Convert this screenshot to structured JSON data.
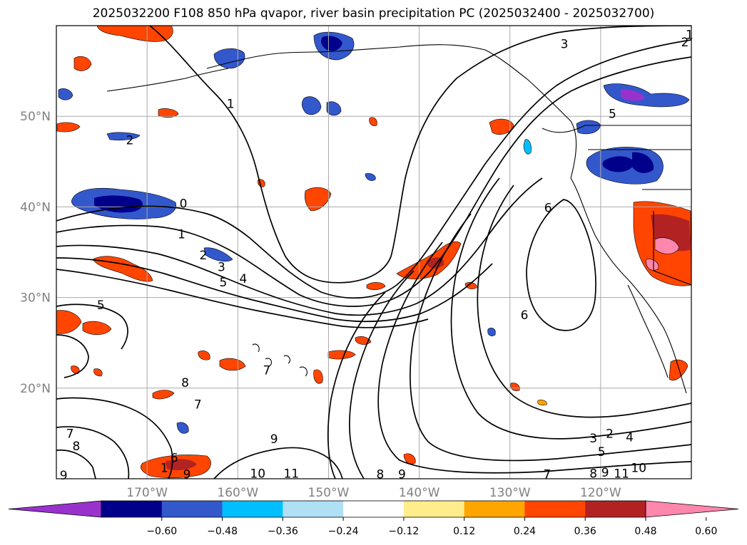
{
  "title": "2025032200 F108 850 hPa qvapor, river basin precipitation PC (2025032400 - 2025032700)",
  "map": {
    "lon_range": [
      -180,
      -110
    ],
    "lat_range": [
      10,
      60
    ],
    "lat_gridlines": [
      {
        "value": 50,
        "label": "50°N"
      },
      {
        "value": 40,
        "label": "40°N"
      },
      {
        "value": 30,
        "label": "30°N"
      },
      {
        "value": 20,
        "label": "20°N"
      }
    ],
    "lon_gridlines": [
      {
        "value": -170,
        "label": "170°W"
      },
      {
        "value": -160,
        "label": "160°W"
      },
      {
        "value": -150,
        "label": "150°W"
      },
      {
        "value": -140,
        "label": "140°W"
      },
      {
        "value": -130,
        "label": "130°W"
      },
      {
        "value": -120,
        "label": "120°W"
      }
    ],
    "contour_labels": [
      {
        "text": "1",
        "lon": -110.2,
        "lat": 59.0
      },
      {
        "text": "2",
        "lon": -110.7,
        "lat": 58.2
      },
      {
        "text": "3",
        "lon": -124.0,
        "lat": 58.0
      },
      {
        "text": "1",
        "lon": -160.8,
        "lat": 51.4
      },
      {
        "text": "2",
        "lon": -171.9,
        "lat": 47.4
      },
      {
        "text": "0",
        "lon": -166.0,
        "lat": 40.4
      },
      {
        "text": "1",
        "lon": -166.2,
        "lat": 37.0
      },
      {
        "text": "2",
        "lon": -163.8,
        "lat": 34.7
      },
      {
        "text": "3",
        "lon": -161.8,
        "lat": 33.4
      },
      {
        "text": "4",
        "lon": -159.4,
        "lat": 32.1
      },
      {
        "text": "5",
        "lon": -161.6,
        "lat": 31.7
      },
      {
        "text": "5",
        "lon": -175.1,
        "lat": 29.2
      },
      {
        "text": "6",
        "lon": -125.8,
        "lat": 39.9
      },
      {
        "text": "6",
        "lon": -128.4,
        "lat": 28.1
      },
      {
        "text": "5",
        "lon": -118.7,
        "lat": 50.3
      },
      {
        "text": "8",
        "lon": -165.8,
        "lat": 20.6
      },
      {
        "text": "7",
        "lon": -164.4,
        "lat": 18.2
      },
      {
        "text": "7",
        "lon": -156.8,
        "lat": 22.0
      },
      {
        "text": "9",
        "lon": -156.0,
        "lat": 14.4
      },
      {
        "text": "7",
        "lon": -178.5,
        "lat": 15.0
      },
      {
        "text": "8",
        "lon": -177.8,
        "lat": 13.6
      },
      {
        "text": "6",
        "lon": -167.0,
        "lat": 12.3
      },
      {
        "text": "1",
        "lon": -168.1,
        "lat": 11.2
      },
      {
        "text": "9",
        "lon": -179.2,
        "lat": 10.4
      },
      {
        "text": "9",
        "lon": -165.6,
        "lat": 10.5
      },
      {
        "text": "10",
        "lon": -157.8,
        "lat": 10.6
      },
      {
        "text": "11",
        "lon": -154.1,
        "lat": 10.6
      },
      {
        "text": "8",
        "lon": -144.3,
        "lat": 10.5
      },
      {
        "text": "9",
        "lon": -141.9,
        "lat": 10.5
      },
      {
        "text": "7",
        "lon": -125.9,
        "lat": 10.5
      },
      {
        "text": "3",
        "lon": -120.8,
        "lat": 14.5
      },
      {
        "text": "2",
        "lon": -119.0,
        "lat": 15.0
      },
      {
        "text": "4",
        "lon": -116.8,
        "lat": 14.6
      },
      {
        "text": "5",
        "lon": -119.9,
        "lat": 13.0
      },
      {
        "text": "8",
        "lon": -120.8,
        "lat": 10.6
      },
      {
        "text": "9",
        "lon": -119.5,
        "lat": 10.7
      },
      {
        "text": "11",
        "lon": -117.7,
        "lat": 10.6
      },
      {
        "text": "10",
        "lon": -115.8,
        "lat": 11.2
      }
    ]
  },
  "colorbar": {
    "colors": [
      "#9932cc",
      "#00008b",
      "#3358cc",
      "#00bfff",
      "#afe0f5",
      "#ffffff",
      "#ffec8b",
      "#ffa500",
      "#ff4500",
      "#b22222",
      "#ff86ad"
    ],
    "tick_labels": [
      "−0.60",
      "−0.48",
      "−0.36",
      "−0.24",
      "−0.12",
      "0.12",
      "0.24",
      "0.36",
      "0.48",
      "0.60"
    ]
  }
}
